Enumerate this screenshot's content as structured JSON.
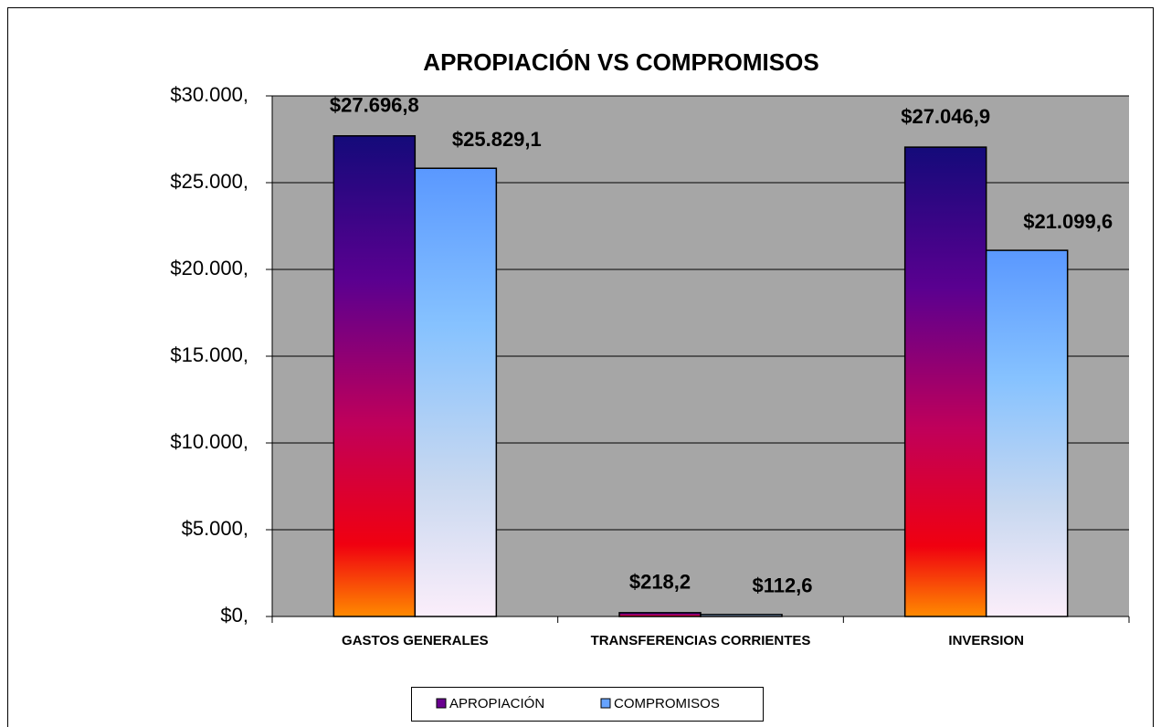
{
  "chart_data": {
    "type": "bar",
    "title": "APROPIACIÓN VS COMPROMISOS",
    "categories": [
      "GASTOS GENERALES",
      "TRANSFERENCIAS CORRIENTES",
      "INVERSION"
    ],
    "series": [
      {
        "name": "APROPIACIÓN",
        "color": "#6a0090",
        "values": [
          27696.8,
          218.2,
          27046.9
        ],
        "value_labels": [
          "$27.696,8",
          "$218,2",
          "$27.046,9"
        ]
      },
      {
        "name": "COMPROMISOS",
        "color": "#66a3ff",
        "values": [
          25829.1,
          112.6,
          21099.6
        ],
        "value_labels": [
          "$25.829,1",
          "$112,6",
          "$21.099,6"
        ]
      }
    ],
    "ylim": [
      0,
      30000
    ],
    "yticks": [
      {
        "value": 0,
        "label": "$0,"
      },
      {
        "value": 5000,
        "label": "$5.000,"
      },
      {
        "value": 10000,
        "label": "$10.000,"
      },
      {
        "value": 15000,
        "label": "$15.000,"
      },
      {
        "value": 20000,
        "label": "$20.000,"
      },
      {
        "value": 25000,
        "label": "$25.000,"
      },
      {
        "value": 30000,
        "label": "$30.000,"
      }
    ],
    "grid": true,
    "legend": "bottom"
  }
}
